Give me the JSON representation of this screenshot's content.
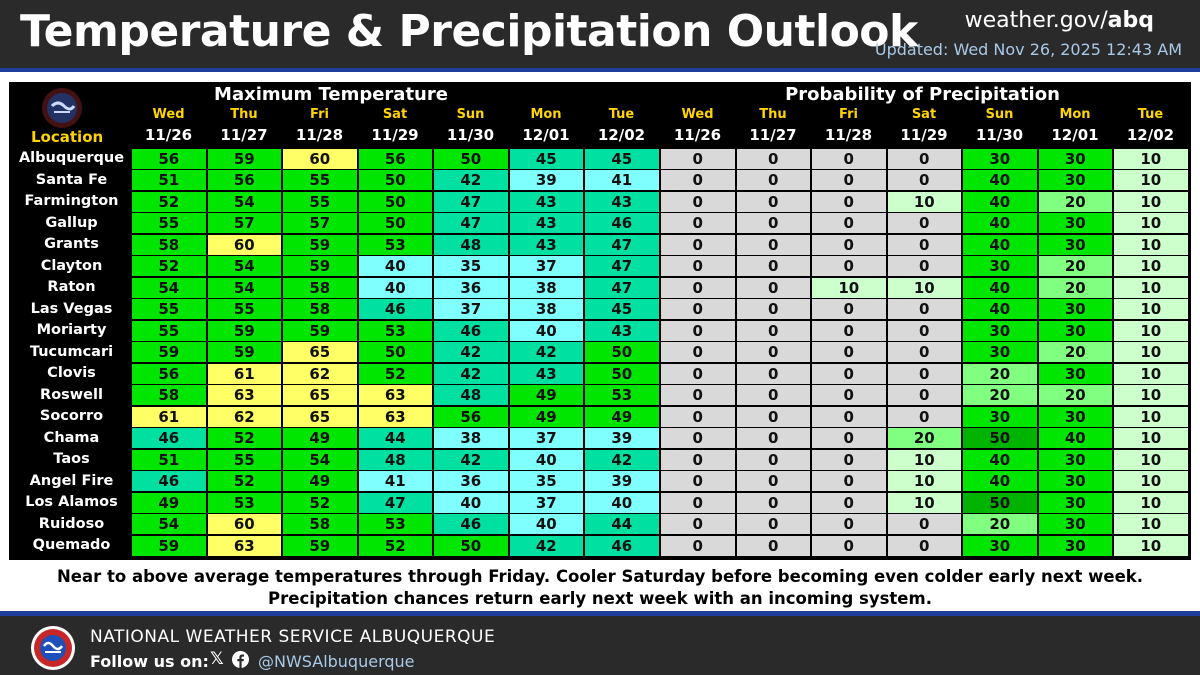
{
  "header": {
    "title": "Temperature & Precipitation Outlook",
    "site_prefix": "weather.gov/",
    "site_suffix": "abq",
    "updated": "Updated: Wed Nov 26, 2025 12:43 AM"
  },
  "table": {
    "location_label": "Location",
    "temp_title": "Maximum Temperature",
    "pop_title": "Probability of Precipitation",
    "days": [
      "Wed",
      "Thu",
      "Fri",
      "Sat",
      "Sun",
      "Mon",
      "Tue"
    ],
    "dates": [
      "11/26",
      "11/27",
      "11/28",
      "11/29",
      "11/30",
      "12/01",
      "12/02"
    ],
    "rows": [
      {
        "location": "Albuquerque",
        "temps": [
          56,
          59,
          60,
          56,
          50,
          45,
          45
        ],
        "pops": [
          0,
          0,
          0,
          0,
          30,
          30,
          10
        ]
      },
      {
        "location": "Santa Fe",
        "temps": [
          51,
          56,
          55,
          50,
          42,
          39,
          41
        ],
        "pops": [
          0,
          0,
          0,
          0,
          40,
          30,
          10
        ]
      },
      {
        "location": "Farmington",
        "temps": [
          52,
          54,
          55,
          50,
          47,
          43,
          43
        ],
        "pops": [
          0,
          0,
          0,
          10,
          40,
          20,
          10
        ]
      },
      {
        "location": "Gallup",
        "temps": [
          55,
          57,
          57,
          50,
          47,
          43,
          46
        ],
        "pops": [
          0,
          0,
          0,
          0,
          40,
          30,
          10
        ]
      },
      {
        "location": "Grants",
        "temps": [
          58,
          60,
          59,
          53,
          48,
          43,
          47
        ],
        "pops": [
          0,
          0,
          0,
          0,
          40,
          30,
          10
        ]
      },
      {
        "location": "Clayton",
        "temps": [
          52,
          54,
          59,
          40,
          35,
          37,
          47
        ],
        "pops": [
          0,
          0,
          0,
          0,
          30,
          20,
          10
        ]
      },
      {
        "location": "Raton",
        "temps": [
          54,
          54,
          58,
          40,
          36,
          38,
          47
        ],
        "pops": [
          0,
          0,
          10,
          10,
          40,
          20,
          10
        ]
      },
      {
        "location": "Las Vegas",
        "temps": [
          55,
          55,
          58,
          46,
          37,
          38,
          45
        ],
        "pops": [
          0,
          0,
          0,
          0,
          40,
          30,
          10
        ]
      },
      {
        "location": "Moriarty",
        "temps": [
          55,
          59,
          59,
          53,
          46,
          40,
          43
        ],
        "pops": [
          0,
          0,
          0,
          0,
          30,
          30,
          10
        ]
      },
      {
        "location": "Tucumcari",
        "temps": [
          59,
          59,
          65,
          50,
          42,
          42,
          50
        ],
        "pops": [
          0,
          0,
          0,
          0,
          30,
          20,
          10
        ]
      },
      {
        "location": "Clovis",
        "temps": [
          56,
          61,
          62,
          52,
          42,
          43,
          50
        ],
        "pops": [
          0,
          0,
          0,
          0,
          20,
          30,
          10
        ]
      },
      {
        "location": "Roswell",
        "temps": [
          58,
          63,
          65,
          63,
          48,
          49,
          53
        ],
        "pops": [
          0,
          0,
          0,
          0,
          20,
          20,
          10
        ]
      },
      {
        "location": "Socorro",
        "temps": [
          61,
          62,
          65,
          63,
          56,
          49,
          49
        ],
        "pops": [
          0,
          0,
          0,
          0,
          30,
          30,
          10
        ]
      },
      {
        "location": "Chama",
        "temps": [
          46,
          52,
          49,
          44,
          38,
          37,
          39
        ],
        "pops": [
          0,
          0,
          0,
          20,
          50,
          40,
          10
        ]
      },
      {
        "location": "Taos",
        "temps": [
          51,
          55,
          54,
          48,
          42,
          40,
          42
        ],
        "pops": [
          0,
          0,
          0,
          10,
          40,
          30,
          10
        ]
      },
      {
        "location": "Angel Fire",
        "temps": [
          46,
          52,
          49,
          41,
          36,
          35,
          39
        ],
        "pops": [
          0,
          0,
          0,
          10,
          40,
          30,
          10
        ]
      },
      {
        "location": "Los Alamos",
        "temps": [
          49,
          53,
          52,
          47,
          40,
          37,
          40
        ],
        "pops": [
          0,
          0,
          0,
          10,
          50,
          30,
          10
        ]
      },
      {
        "location": "Ruidoso",
        "temps": [
          54,
          60,
          58,
          53,
          46,
          40,
          44
        ],
        "pops": [
          0,
          0,
          0,
          0,
          20,
          30,
          10
        ]
      },
      {
        "location": "Quemado",
        "temps": [
          59,
          63,
          59,
          52,
          50,
          42,
          46
        ],
        "pops": [
          0,
          0,
          0,
          0,
          30,
          30,
          10
        ]
      }
    ]
  },
  "colors": {
    "temp_yellow": "#ffff66",
    "temp_green": "#00e600",
    "temp_teal": "#00e0a0",
    "temp_cyan": "#80ffff",
    "pop_zero": "#d9d9d9",
    "pop_10": "#ccffcc",
    "pop_20": "#80ff80",
    "pop_30": "#00e600",
    "pop_40": "#00e600",
    "pop_50": "#00b300",
    "stripe_blue": "#1f3e9b",
    "bar_dark": "#2a2a2a"
  },
  "summary": {
    "line1": "Near to above average temperatures through Friday. Cooler Saturday before becoming even colder early next week.",
    "line2": "Precipitation chances return early next week with an incoming system."
  },
  "footer": {
    "org": "NATIONAL WEATHER SERVICE ALBUQUERQUE",
    "follow": "Follow us on:",
    "x_glyph": "𝕏",
    "handle": "@NWSAlbuquerque",
    "logo_icon": "nws-logo-icon",
    "x_icon": "x-icon",
    "facebook_icon": "facebook-icon"
  }
}
